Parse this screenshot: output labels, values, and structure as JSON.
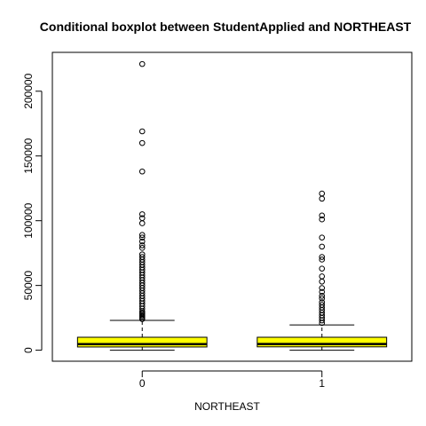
{
  "chart_data": {
    "type": "boxplot",
    "title": "Conditional boxplot between StudentApplied and NORTHEAST",
    "xlabel": "NORTHEAST",
    "ylabel": "",
    "categories": [
      "0",
      "1"
    ],
    "ylim": [
      -8500,
      230000
    ],
    "yticks": [
      "0",
      "50000",
      "100000",
      "150000",
      "200000"
    ],
    "ytick_values": [
      0,
      50000,
      100000,
      150000,
      200000
    ],
    "box_fill": "#ffff00",
    "grid": false,
    "legend": "none",
    "boxes": [
      {
        "category": "0",
        "min": 0,
        "q1": 2500,
        "median": 4700,
        "q3": 10000,
        "whisker_high": 23000,
        "outliers": [
          221000,
          169000,
          160000,
          138000,
          105000,
          102000,
          98000,
          89000,
          87000,
          84000,
          81000,
          79000,
          74000,
          72000,
          70000,
          68000,
          66000,
          64000,
          62000,
          60000,
          58000,
          56000,
          54000,
          52000,
          50000,
          48000,
          46000,
          44000,
          42000,
          40000,
          38000,
          36000,
          34000,
          32000,
          30000,
          29000,
          28000,
          27000,
          26000,
          25000,
          24000
        ]
      },
      {
        "category": "1",
        "min": 0,
        "q1": 2600,
        "median": 4800,
        "q3": 10000,
        "whisker_high": 19500,
        "outliers": [
          121000,
          117000,
          104000,
          101000,
          87000,
          80000,
          72000,
          70000,
          63000,
          57000,
          53000,
          48000,
          45000,
          42000,
          40000,
          37000,
          35000,
          33000,
          31000,
          29000,
          27000,
          25000,
          23000,
          21000
        ]
      }
    ]
  }
}
